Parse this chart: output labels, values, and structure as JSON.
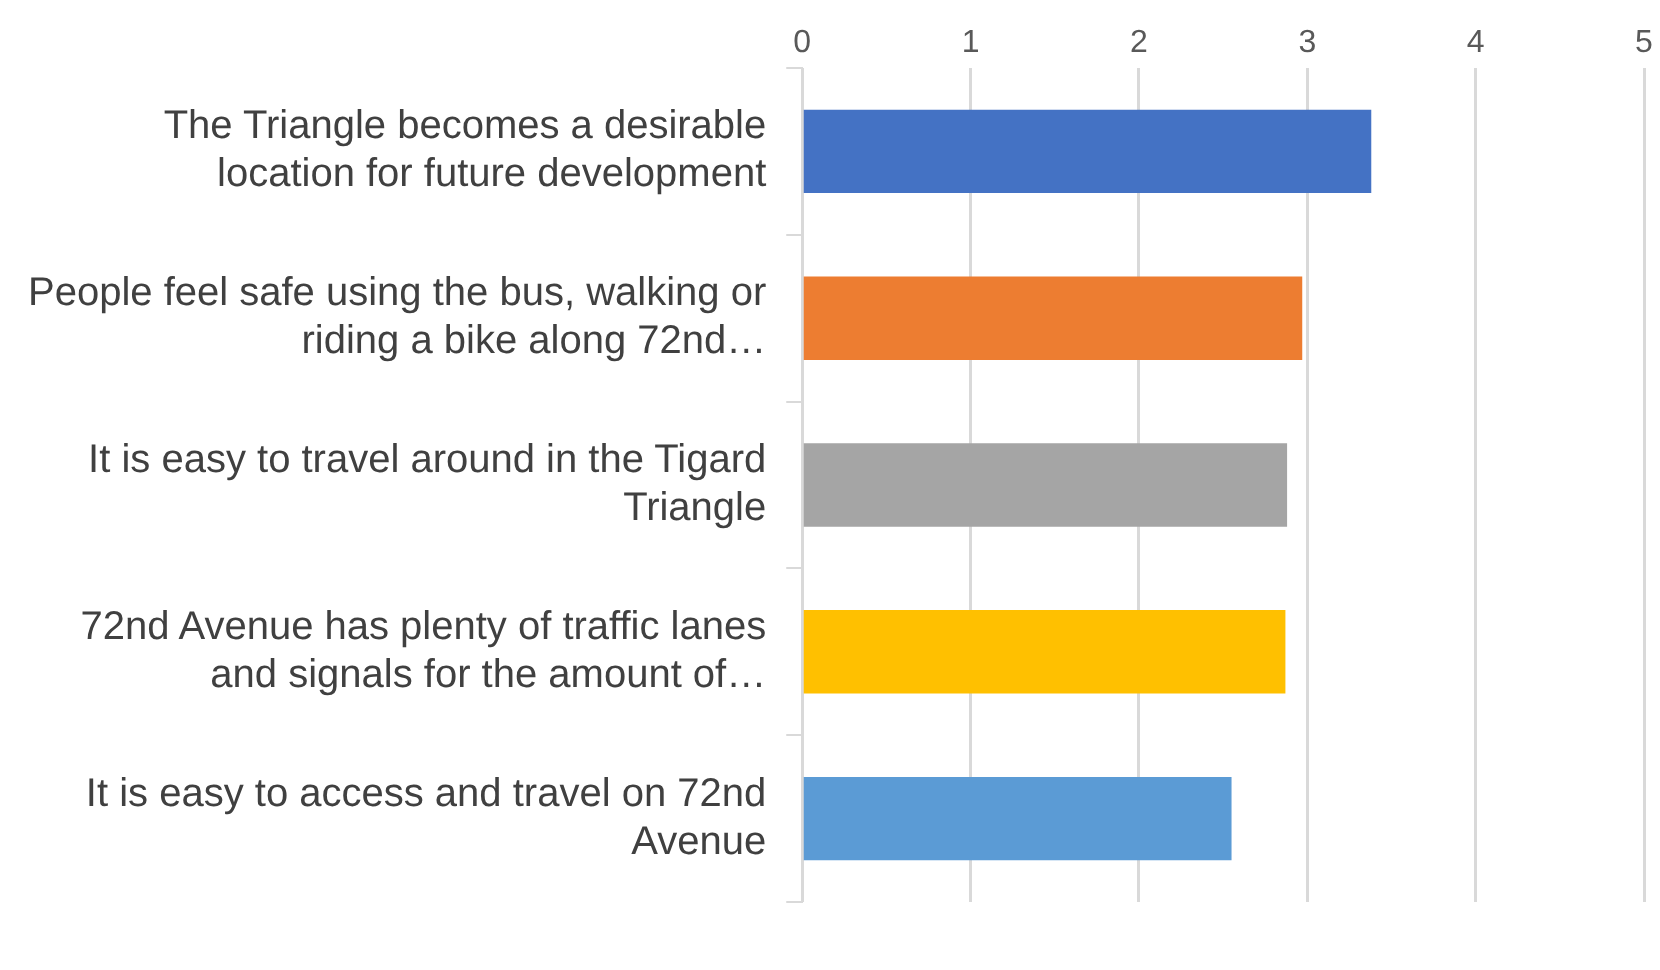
{
  "chart_data": {
    "type": "bar",
    "orientation": "horizontal",
    "categories": [
      "The Triangle becomes a desirable location for future development",
      "People feel safe using the bus, walking or riding a bike along 72nd…",
      "It is easy to travel around in the Tigard Triangle",
      "72nd Avenue has plenty of traffic lanes and signals for the amount of…",
      "It is easy to access and travel on 72nd Avenue"
    ],
    "values": [
      3.38,
      2.97,
      2.88,
      2.87,
      2.55
    ],
    "colors": [
      "#4472c4",
      "#ed7d31",
      "#a5a5a5",
      "#ffc000",
      "#5b9bd5"
    ],
    "xlim": [
      0,
      5
    ],
    "xticks": [
      0,
      1,
      2,
      3,
      4,
      5
    ],
    "grid": "x",
    "legend": false
  }
}
